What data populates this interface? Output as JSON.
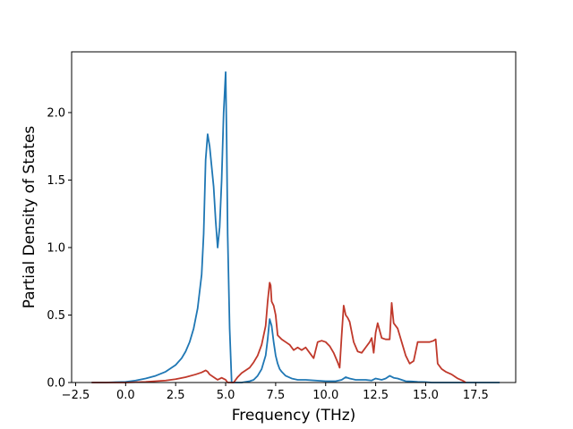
{
  "chart_data": {
    "type": "line",
    "title": "",
    "xlabel": "Frequency (THz)",
    "ylabel": "Partial Density of States",
    "xlim": [
      -2.7,
      19.5
    ],
    "ylim": [
      0,
      2.45
    ],
    "grid": false,
    "legend": "none",
    "x_ticks": [
      -2.5,
      0.0,
      2.5,
      5.0,
      7.5,
      10.0,
      12.5,
      15.0,
      17.5
    ],
    "x_tick_labels": [
      "−2.5",
      "0.0",
      "2.5",
      "5.0",
      "7.5",
      "10.0",
      "12.5",
      "15.0",
      "17.5"
    ],
    "y_ticks": [
      0.0,
      0.5,
      1.0,
      1.5,
      2.0
    ],
    "y_tick_labels": [
      "0.0",
      "0.5",
      "1.0",
      "1.5",
      "2.0"
    ],
    "series": [
      {
        "color": "#1f77b4",
        "x": [
          -1.7,
          -1.0,
          0.0,
          0.5,
          1.0,
          1.5,
          2.0,
          2.5,
          2.8,
          3.0,
          3.2,
          3.4,
          3.6,
          3.8,
          3.9,
          4.0,
          4.1,
          4.2,
          4.3,
          4.4,
          4.5,
          4.6,
          4.7,
          4.8,
          4.9,
          5.0,
          5.05,
          5.1,
          5.2,
          5.3,
          5.35,
          5.4,
          5.6,
          5.8,
          6.0,
          6.2,
          6.4,
          6.6,
          6.8,
          7.0,
          7.1,
          7.2,
          7.3,
          7.4,
          7.5,
          7.6,
          7.7,
          7.8,
          8.0,
          8.3,
          8.6,
          9.0,
          9.5,
          10.0,
          10.5,
          10.8,
          11.0,
          11.2,
          11.5,
          12.0,
          12.3,
          12.5,
          12.8,
          13.0,
          13.2,
          13.4,
          13.6,
          13.8,
          14.0,
          14.3,
          14.6,
          15.0,
          15.3,
          15.6,
          16.0,
          16.5,
          17.0,
          18.0,
          18.7
        ],
        "y": [
          0.0,
          0.0,
          0.005,
          0.015,
          0.03,
          0.05,
          0.08,
          0.13,
          0.18,
          0.23,
          0.3,
          0.4,
          0.55,
          0.8,
          1.1,
          1.65,
          1.84,
          1.75,
          1.6,
          1.45,
          1.2,
          1.0,
          1.15,
          1.5,
          2.0,
          2.3,
          1.8,
          1.1,
          0.4,
          0.0,
          0.0,
          0.0,
          0.0,
          0.0,
          0.005,
          0.01,
          0.02,
          0.05,
          0.1,
          0.2,
          0.32,
          0.47,
          0.42,
          0.3,
          0.2,
          0.14,
          0.1,
          0.08,
          0.05,
          0.03,
          0.02,
          0.02,
          0.015,
          0.01,
          0.01,
          0.02,
          0.04,
          0.03,
          0.02,
          0.02,
          0.015,
          0.03,
          0.02,
          0.03,
          0.05,
          0.035,
          0.03,
          0.02,
          0.01,
          0.008,
          0.005,
          0.003,
          0.0,
          0.0,
          0.0,
          0.0,
          0.0,
          0.0,
          0.0
        ]
      },
      {
        "color": "#c0392b",
        "x": [
          -1.7,
          -1.0,
          0.0,
          1.0,
          2.0,
          2.5,
          3.0,
          3.5,
          3.8,
          4.0,
          4.1,
          4.2,
          4.4,
          4.6,
          4.8,
          5.0,
          5.1,
          5.2,
          5.4,
          5.6,
          5.8,
          6.0,
          6.2,
          6.4,
          6.6,
          6.8,
          7.0,
          7.1,
          7.2,
          7.25,
          7.3,
          7.4,
          7.5,
          7.6,
          7.8,
          8.0,
          8.2,
          8.4,
          8.6,
          8.8,
          9.0,
          9.2,
          9.4,
          9.6,
          9.8,
          10.0,
          10.2,
          10.4,
          10.6,
          10.7,
          10.8,
          10.9,
          11.0,
          11.1,
          11.2,
          11.4,
          11.6,
          11.8,
          12.0,
          12.2,
          12.3,
          12.4,
          12.5,
          12.6,
          12.8,
          13.0,
          13.2,
          13.3,
          13.4,
          13.6,
          13.8,
          14.0,
          14.2,
          14.4,
          14.6,
          14.8,
          15.0,
          15.2,
          15.4,
          15.5,
          15.6,
          15.8,
          16.0,
          16.3,
          16.6,
          16.9,
          17.0
        ],
        "y": [
          0.0,
          0.0,
          0.0,
          0.005,
          0.015,
          0.025,
          0.04,
          0.06,
          0.075,
          0.09,
          0.08,
          0.06,
          0.04,
          0.02,
          0.035,
          0.02,
          0.0,
          0.0,
          0.0,
          0.04,
          0.07,
          0.09,
          0.11,
          0.15,
          0.2,
          0.28,
          0.42,
          0.6,
          0.74,
          0.72,
          0.6,
          0.57,
          0.5,
          0.35,
          0.32,
          0.3,
          0.28,
          0.24,
          0.26,
          0.24,
          0.26,
          0.22,
          0.18,
          0.3,
          0.31,
          0.3,
          0.27,
          0.22,
          0.15,
          0.11,
          0.35,
          0.57,
          0.5,
          0.48,
          0.45,
          0.3,
          0.23,
          0.22,
          0.26,
          0.3,
          0.33,
          0.22,
          0.37,
          0.44,
          0.33,
          0.32,
          0.32,
          0.59,
          0.44,
          0.4,
          0.3,
          0.2,
          0.14,
          0.16,
          0.3,
          0.3,
          0.3,
          0.3,
          0.31,
          0.32,
          0.14,
          0.1,
          0.08,
          0.06,
          0.03,
          0.01,
          0.0
        ]
      }
    ]
  }
}
